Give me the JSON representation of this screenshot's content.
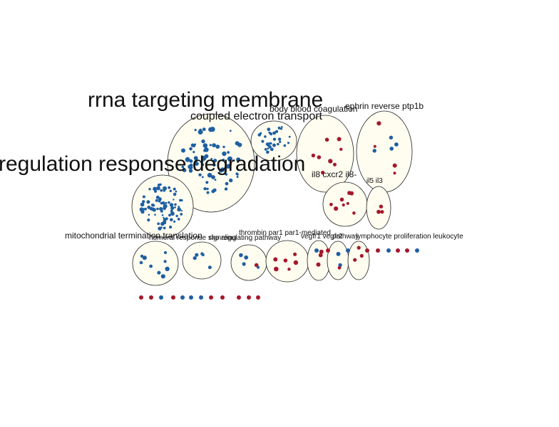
{
  "clusters": [
    {
      "id": "mito",
      "label": "mitochondrial termination translation"
    },
    {
      "id": "rrna",
      "label": "rrna targeting membrane"
    },
    {
      "id": "regulation",
      "label": "regulation response degradation"
    },
    {
      "id": "coupled",
      "label": "coupled electron transport"
    },
    {
      "id": "body",
      "label": "body blood coagulation"
    },
    {
      "id": "ephrin",
      "label": "ephrin reverse ptp1b"
    },
    {
      "id": "il8",
      "label": "il8 cxcr2 il8-"
    },
    {
      "id": "il5",
      "label": "il5 il3"
    },
    {
      "id": "humoral",
      "label": "humoral response signaling"
    },
    {
      "id": "rho",
      "label": "rho regulating pathway"
    },
    {
      "id": "thrombin",
      "label": "thrombin par1 par1-mediated"
    },
    {
      "id": "vegfr",
      "label": "vegfr1 vegfr2"
    },
    {
      "id": "lymphocyte",
      "label": "lymphocyte proliferation leukocyte"
    },
    {
      "id": "pathway",
      "label": "pathway"
    }
  ],
  "colors": {
    "up": "#a5182b",
    "down": "#1f5fa3",
    "edge": "#6fb7c9",
    "cluster_fill": "#fffdf0"
  }
}
